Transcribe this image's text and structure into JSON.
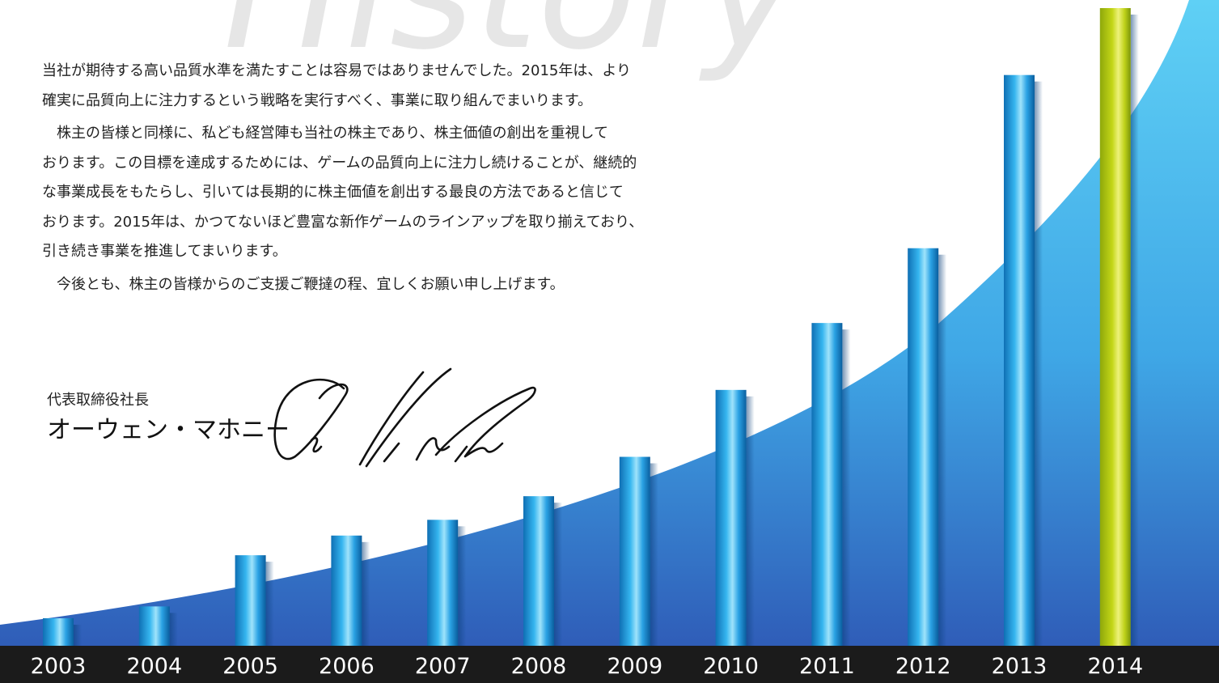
{
  "header": {
    "watermark": "History"
  },
  "message": {
    "paragraphs": [
      "当社が期待する高い品質水準を満たすことは容易ではありませんでした。2015年は、より",
      "確実に品質向上に注力するという戦略を実行すべく、事業に取り組んでまいります。",
      "株主の皆様と同様に、私ども経営陣も当社の株主であり、株主価値の創出を重視して",
      "おります。この目標を達成するためには、ゲームの品質向上に注力し続けることが、継続的",
      "な事業成長をもたらし、引いては長期的に株主価値を創出する最良の方法であると信じて",
      "おります。2015年は、かつてないほど豊富な新作ゲームのラインアップを取り揃えており、",
      "引き続き事業を推進してまいります。",
      "今後とも、株主の皆様からのご支援ご鞭撻の程、宜しくお願い申し上げます。"
    ]
  },
  "signature": {
    "title": "代表取締役社長",
    "name": "オーウェン・マホニー"
  },
  "colors": {
    "bar_fill": "#1a8fd3",
    "highlight_fill": "#c3d617",
    "background_curve": "#4fc3f0",
    "axis_band": "#1b1b1b",
    "axis_text": "#ffffff",
    "watermark": "#e6e6e6"
  },
  "chart_data": {
    "type": "bar",
    "title": "",
    "xlabel": "",
    "ylabel": "",
    "categories": [
      "2003",
      "2004",
      "2005",
      "2006",
      "2007",
      "2008",
      "2009",
      "2010",
      "2011",
      "2012",
      "2013",
      "2014"
    ],
    "values": [
      3.5,
      5.0,
      11.5,
      14.0,
      16.0,
      19.0,
      24.0,
      32.5,
      41.0,
      50.5,
      72.5,
      81.0
    ],
    "highlight": "2014",
    "ylim": [
      0,
      81
    ],
    "grid": false,
    "legend": "none"
  }
}
